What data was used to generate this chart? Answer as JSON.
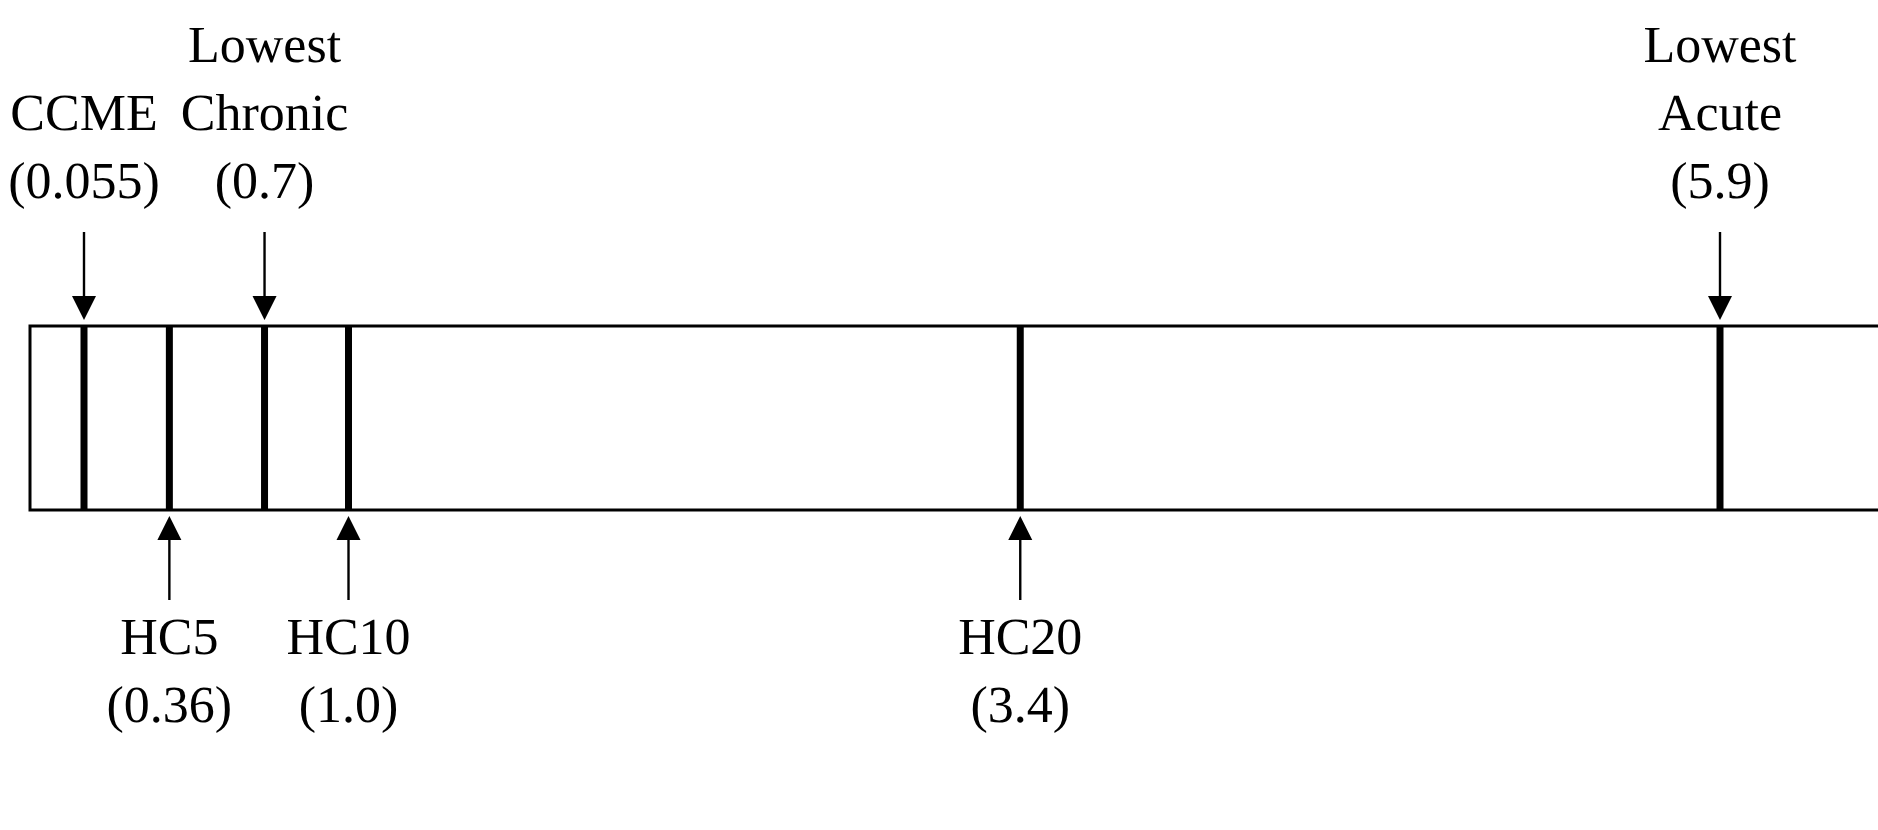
{
  "chart_data": {
    "type": "other",
    "categories": [
      "CCME",
      "HC5",
      "Lowest\nChronic",
      "HC10",
      "HC20",
      "Lowest\nAcute"
    ],
    "series": [
      {
        "axis": "x2",
        "values": [
          0.055,
          null,
          0.7,
          null,
          null,
          5.9
        ],
        "value_labels": [
          "(0.055)",
          null,
          "(0.7)",
          null,
          null,
          "(5.9)"
        ]
      },
      {
        "values": [
          null,
          0.36,
          null,
          1.0,
          3.4,
          null
        ],
        "value_labels": [
          null,
          "(0.36)",
          null,
          "(1.0)",
          "(3.4)",
          null
        ]
      }
    ]
  }
}
